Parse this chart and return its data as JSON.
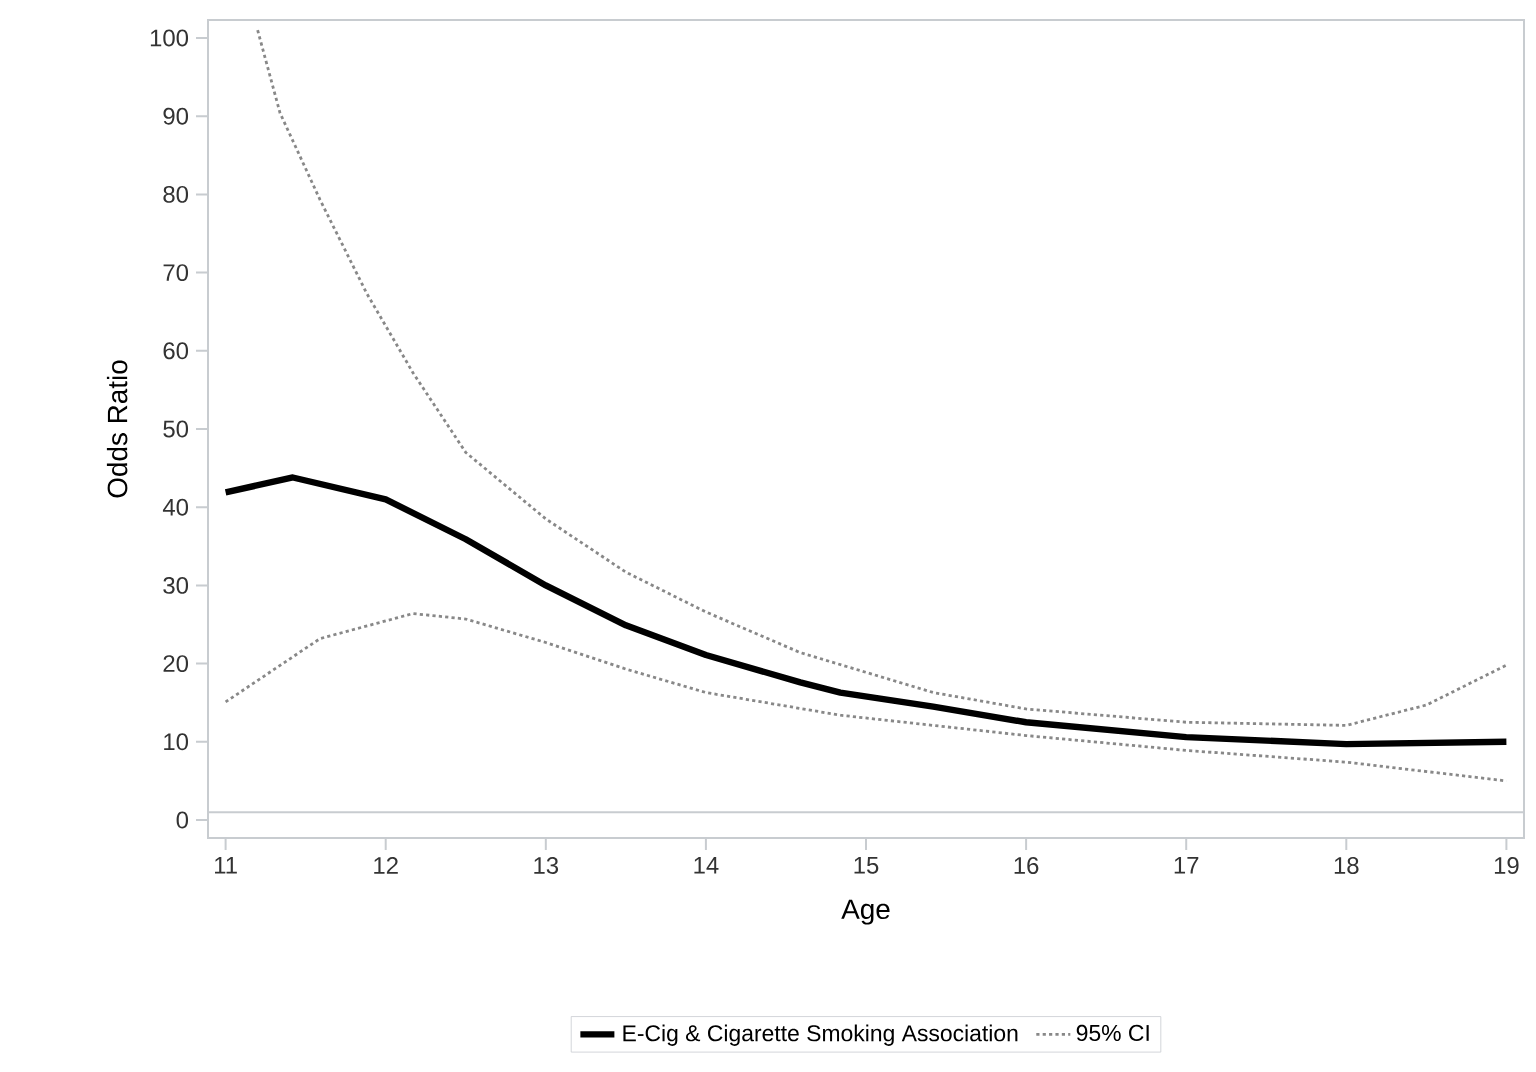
{
  "chart_data": {
    "type": "line",
    "xlabel": "Age",
    "ylabel": "Odds Ratio",
    "xlim": [
      10.89,
      19.11
    ],
    "ylim": [
      -2.3,
      102.3
    ],
    "xticks": [
      11,
      12,
      13,
      14,
      15,
      16,
      17,
      18,
      19
    ],
    "yticks": [
      0,
      10,
      20,
      30,
      40,
      50,
      60,
      70,
      80,
      90,
      100
    ],
    "grid": false,
    "legend": "bottom",
    "ref_lines": [
      {
        "axis": "y",
        "value": 1,
        "color": "#c8ccd0"
      }
    ],
    "series": [
      {
        "name": "E-Cig & Cigarette Smoking Association",
        "color": "#000000",
        "line_style": "solid",
        "x": [
          11,
          11.42,
          12,
          12.5,
          13,
          13.5,
          14,
          14.59,
          14.84,
          15.42,
          16,
          17,
          18,
          19
        ],
        "values": [
          41.9,
          43.8,
          41,
          35.9,
          30,
          24.9,
          21.1,
          17.6,
          16.3,
          14.5,
          12.5,
          10.6,
          9.7,
          10
        ]
      },
      {
        "name": "95% CI",
        "color": "#888888",
        "line_style": "dotted",
        "x": [
          11.2,
          11.34,
          11.59,
          11.88,
          12.17,
          12.5,
          13,
          13.5,
          14,
          14.59,
          15.42,
          16,
          17,
          18,
          18.5,
          19
        ],
        "values": [
          101,
          90.4,
          79.3,
          67.4,
          57.2,
          47,
          38.5,
          31.7,
          26.6,
          21.4,
          16.3,
          14.2,
          12.5,
          12.1,
          14.7,
          19.8
        ]
      },
      {
        "color": "#888888",
        "line_style": "dotted",
        "x": [
          11,
          11.59,
          12.17,
          12.5,
          13,
          13.5,
          14,
          14.84,
          15.42,
          16,
          17,
          18,
          19
        ],
        "values": [
          15.1,
          23.2,
          26.4,
          25.7,
          22.7,
          19.3,
          16.3,
          13.4,
          12.1,
          10.8,
          8.9,
          7.4,
          5.0
        ]
      }
    ]
  }
}
